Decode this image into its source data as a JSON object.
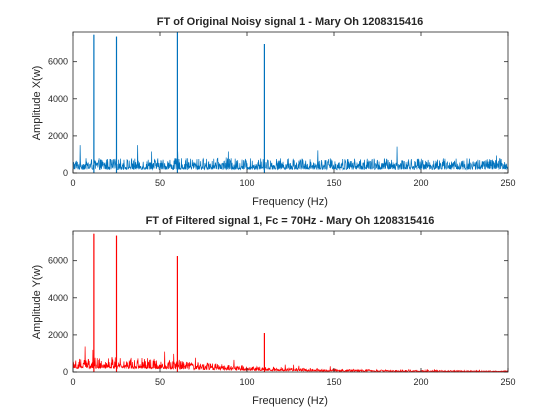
{
  "chart_data": [
    {
      "type": "line",
      "title": "FT of Original Noisy signal 1 - Mary Oh 1208315416",
      "xlabel": "Frequency (Hz)",
      "ylabel": "Amplitude X(w)",
      "xlim": [
        0,
        250
      ],
      "ylim": [
        0,
        7600
      ],
      "xticks": [
        0,
        50,
        100,
        150,
        200,
        250
      ],
      "yticks": [
        0,
        2000,
        4000,
        6000
      ],
      "xtick_labels": [
        "0",
        "50",
        "100",
        "150",
        "200",
        "250"
      ],
      "ytick_labels": [
        "0",
        "2000",
        "4000",
        "6000"
      ],
      "grid": false,
      "color": "#0072bd",
      "noise_floor": {
        "from_hz": 0,
        "to_hz": 250,
        "typical": 550,
        "max": 1500,
        "envelope": "flat"
      },
      "peaks": [
        {
          "x": 12,
          "y": 7450
        },
        {
          "x": 25,
          "y": 7350
        },
        {
          "x": 60,
          "y": 7600
        },
        {
          "x": 110,
          "y": 6950
        }
      ]
    },
    {
      "type": "line",
      "title": "FT of Filtered signal 1, Fc = 70Hz - Mary Oh 1208315416",
      "xlabel": "Frequency (Hz)",
      "ylabel": "Amplitude Y(w)",
      "xlim": [
        0,
        250
      ],
      "ylim": [
        0,
        7600
      ],
      "xticks": [
        0,
        50,
        100,
        150,
        200,
        250
      ],
      "yticks": [
        0,
        2000,
        4000,
        6000
      ],
      "xtick_labels": [
        "0",
        "50",
        "100",
        "150",
        "200",
        "250"
      ],
      "ytick_labels": [
        "0",
        "2000",
        "4000",
        "6000"
      ],
      "grid": false,
      "color": "#ff0000",
      "noise_floor": {
        "from_hz": 0,
        "to_hz": 250,
        "typical": 550,
        "max": 1400,
        "envelope": "lowpass",
        "cutoff_hz": 70
      },
      "peaks": [
        {
          "x": 12,
          "y": 7450
        },
        {
          "x": 25,
          "y": 7350
        },
        {
          "x": 60,
          "y": 6250
        },
        {
          "x": 110,
          "y": 2100
        }
      ]
    }
  ]
}
